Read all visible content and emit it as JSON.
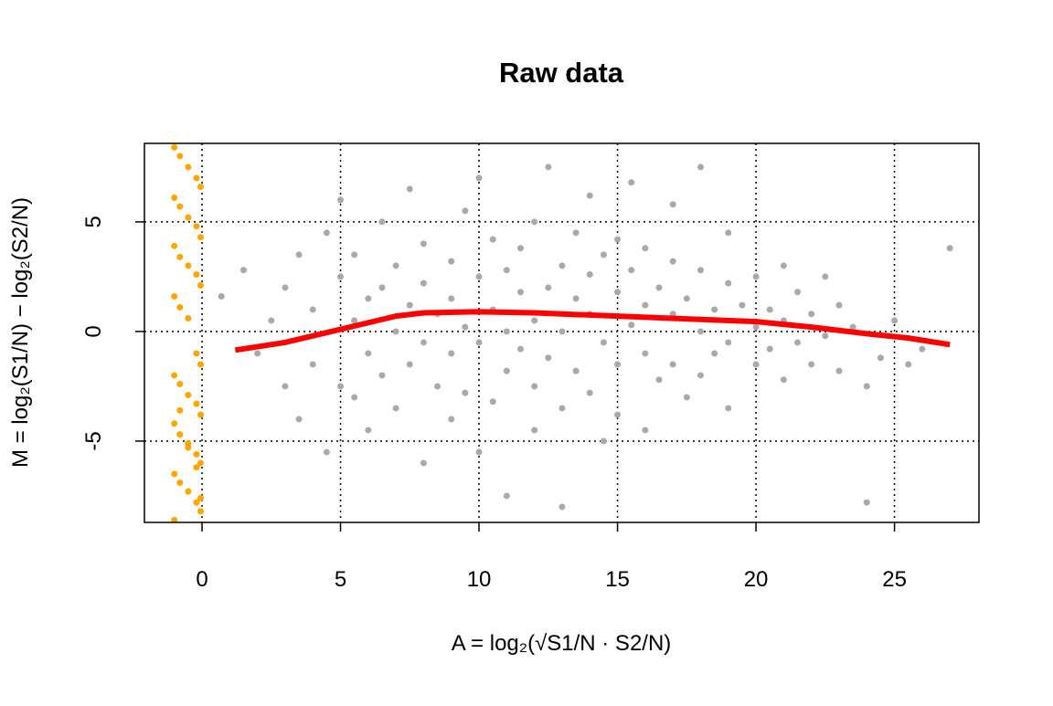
{
  "chart_data": {
    "type": "scatter",
    "title": "Raw data",
    "xlabel": "A = log₂(√S1/N · S2/N)",
    "ylabel": "M = log₂(S1/N) − log₂(S2/N)",
    "xlim": [
      -2.08,
      28.05
    ],
    "ylim": [
      -8.71,
      8.58
    ],
    "xticks": [
      0,
      5,
      10,
      15,
      20,
      25
    ],
    "yticks": [
      -5,
      0,
      5
    ],
    "grid": true,
    "series": [
      {
        "type": "scatter",
        "color": "#a9a9a9",
        "x": [
          0.7,
          1.5,
          2,
          2.5,
          3,
          3,
          3.5,
          3.5,
          4,
          4,
          4.5,
          4.5,
          5,
          5,
          5,
          5.5,
          5.5,
          5.5,
          6,
          6,
          6,
          6.5,
          6.5,
          6.5,
          7,
          7,
          7,
          7.5,
          7.5,
          7.5,
          8,
          8,
          8,
          8,
          8.5,
          8.5,
          9,
          9,
          9,
          9,
          9.5,
          9.5,
          9.5,
          10,
          10,
          10,
          10,
          10.5,
          10.5,
          10.5,
          11,
          11,
          11,
          11,
          11.5,
          11.5,
          11.5,
          12,
          12,
          12,
          12,
          12.5,
          12.5,
          12.5,
          13,
          13,
          13,
          13,
          13.5,
          13.5,
          13.5,
          14,
          14,
          14,
          14,
          14.5,
          14.5,
          14.5,
          15,
          15,
          15,
          15,
          15.5,
          15.5,
          15.5,
          16,
          16,
          16,
          16,
          16.5,
          16.5,
          17,
          17,
          17,
          17,
          17.5,
          17.5,
          18,
          18,
          18,
          18,
          18.5,
          18.5,
          19,
          19,
          19,
          19,
          19.5,
          20,
          20,
          20,
          20.5,
          20.5,
          21,
          21,
          21,
          21.5,
          21.5,
          22,
          22,
          22.5,
          22.5,
          23,
          23,
          23.5,
          24,
          24,
          24.5,
          25,
          25.5,
          26,
          27
        ],
        "values": [
          1.6,
          2.8,
          -1,
          0.5,
          2,
          -2.5,
          3.5,
          -4,
          1,
          -1.5,
          4.5,
          -5.5,
          6,
          2.5,
          -2.5,
          0.5,
          -3,
          3.5,
          1.5,
          -1,
          -4.5,
          5,
          2,
          -2,
          0,
          3,
          -3.5,
          1.2,
          -1.5,
          6.5,
          4,
          -0.5,
          2.2,
          -6,
          -2.5,
          0.8,
          3.2,
          -4,
          1.5,
          -1,
          5.5,
          0.2,
          -2.8,
          2.5,
          -0.5,
          7,
          -5.5,
          1,
          -3.2,
          4.2,
          0,
          2.8,
          -1.8,
          -7.5,
          3.8,
          -0.8,
          1.8,
          5,
          -2.5,
          0.5,
          -4.5,
          2,
          -1.2,
          7.5,
          3,
          0,
          -3.5,
          -8,
          1.5,
          -1.8,
          4.5,
          0.8,
          -2.8,
          2.6,
          6.2,
          -0.5,
          3.5,
          -5,
          1.8,
          -1.5,
          4.2,
          -3.8,
          0.3,
          2.8,
          6.8,
          -1,
          1.2,
          3.8,
          -4.5,
          -2.2,
          2,
          0.8,
          3.2,
          -1.5,
          5.8,
          -3,
          1.5,
          0,
          2.8,
          -2,
          7.5,
          1,
          -1,
          2.2,
          -0.5,
          4.5,
          -3.5,
          1.2,
          0.2,
          2.5,
          -1.5,
          1,
          -0.8,
          0.5,
          3,
          -2.2,
          1.8,
          -0.5,
          0.8,
          -1.5,
          2.5,
          -0.2,
          -1.8,
          1.2,
          0.2,
          -2.5,
          -7.8,
          -1.2,
          0.5,
          -1.5,
          -0.8,
          3.8
        ]
      },
      {
        "type": "scatter",
        "color": "#ffa500",
        "x": [
          -1,
          -0.8,
          -0.5,
          -0.2,
          -0.05,
          -1,
          -0.8,
          -0.5,
          -0.2,
          -0.05,
          -1,
          -0.8,
          -0.5,
          -0.2,
          -0.05,
          -1,
          -0.8,
          -0.5,
          -0.2,
          -0.05,
          -1,
          -0.8,
          -0.5,
          -0.2,
          -0.05,
          -1,
          -0.8,
          -0.5,
          -0.2,
          -0.05,
          -1,
          -0.8,
          -0.5,
          -0.2,
          -0.05,
          -1,
          -0.8,
          -0.5,
          -0.2,
          -0.05
        ],
        "values": [
          8.4,
          8,
          7.5,
          7,
          6.6,
          6.1,
          5.7,
          5.2,
          4.8,
          4.3,
          3.9,
          3.4,
          3,
          2.6,
          2.1,
          1.6,
          1.1,
          0.6,
          -1,
          -1.5,
          -2,
          -2.4,
          -2.9,
          -3.3,
          -3.8,
          -4.2,
          -4.7,
          -5.1,
          -5.6,
          -6,
          -6.5,
          -6.9,
          -7.3,
          -7.8,
          -8.2,
          -8.6,
          -3.6,
          -5.3,
          -6.2,
          -7.6
        ]
      },
      {
        "type": "line",
        "color": "#ff0000",
        "x": [
          1.2,
          3,
          5,
          7,
          8,
          10,
          12,
          15,
          18,
          20,
          22,
          24,
          25.5,
          27
        ],
        "values": [
          -0.85,
          -0.5,
          0.1,
          0.7,
          0.85,
          0.9,
          0.85,
          0.7,
          0.55,
          0.45,
          0.2,
          -0.1,
          -0.3,
          -0.6
        ]
      }
    ]
  }
}
